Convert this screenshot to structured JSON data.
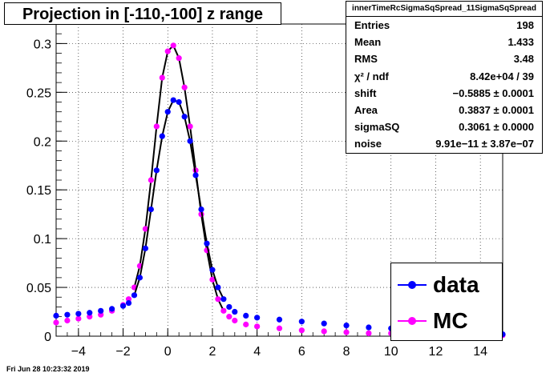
{
  "title": "Projection in [-110,-100] z range",
  "stats": {
    "name": "innerTimeRcSigmaSqSpread_11SigmaSqSpread",
    "rows": [
      {
        "label": "Entries",
        "value": "198"
      },
      {
        "label": "Mean",
        "value": "1.433"
      },
      {
        "label": "RMS",
        "value": "3.48"
      },
      {
        "label": "χ² / ndf",
        "value": "8.42e+04 / 39"
      },
      {
        "label": "shift",
        "value": "−0.5885 ± 0.0001"
      },
      {
        "label": "Area",
        "value": "0.3837 ± 0.0001"
      },
      {
        "label": "sigmaSQ",
        "value": "0.3061 ± 0.0000"
      },
      {
        "label": "noise",
        "value": "9.91e−11 ± 3.87e−07"
      }
    ]
  },
  "legend": [
    {
      "label": "data",
      "color": "#0000ff"
    },
    {
      "label": "MC",
      "color": "#ff00ff"
    }
  ],
  "footer": "Fri Jun 28 10:23:32 2019",
  "chart_data": {
    "type": "scatter",
    "xlim": [
      -5,
      15
    ],
    "ylim": [
      0,
      0.32
    ],
    "x_ticks": [
      "−4",
      "−2",
      "0",
      "2",
      "4",
      "6",
      "8",
      "10",
      "12",
      "14"
    ],
    "x_tick_values": [
      -4,
      -2,
      0,
      2,
      4,
      6,
      8,
      10,
      12,
      14
    ],
    "y_ticks": [
      "0",
      "0.05",
      "0.1",
      "0.15",
      "0.2",
      "0.25",
      "0.3"
    ],
    "y_tick_values": [
      0,
      0.05,
      0.1,
      0.15,
      0.2,
      0.25,
      0.3
    ],
    "grid": true,
    "series": [
      {
        "name": "data",
        "color": "#0000ff",
        "x": [
          -5.0,
          -4.5,
          -4.0,
          -3.5,
          -3.0,
          -2.5,
          -2.0,
          -1.75,
          -1.5,
          -1.25,
          -1.0,
          -0.75,
          -0.5,
          -0.25,
          0.0,
          0.25,
          0.5,
          0.75,
          1.0,
          1.25,
          1.5,
          1.75,
          2.0,
          2.25,
          2.5,
          2.75,
          3.0,
          3.5,
          4.0,
          5.0,
          6.0,
          7.0,
          8.0,
          9.0,
          10.0,
          11.0,
          12.0,
          13.0,
          14.0,
          15.0
        ],
        "y": [
          0.021,
          0.022,
          0.023,
          0.024,
          0.026,
          0.028,
          0.031,
          0.034,
          0.042,
          0.06,
          0.09,
          0.13,
          0.17,
          0.205,
          0.23,
          0.242,
          0.24,
          0.225,
          0.2,
          0.165,
          0.13,
          0.095,
          0.068,
          0.05,
          0.038,
          0.03,
          0.025,
          0.021,
          0.019,
          0.017,
          0.015,
          0.013,
          0.011,
          0.009,
          0.008,
          0.006,
          0.005,
          0.004,
          0.003,
          0.002
        ]
      },
      {
        "name": "MC",
        "color": "#ff00ff",
        "x": [
          -5.0,
          -4.5,
          -4.0,
          -3.5,
          -3.0,
          -2.5,
          -2.0,
          -1.75,
          -1.5,
          -1.25,
          -1.0,
          -0.75,
          -0.5,
          -0.25,
          0.0,
          0.25,
          0.5,
          0.75,
          1.0,
          1.25,
          1.5,
          1.75,
          2.0,
          2.25,
          2.5,
          2.75,
          3.0,
          3.5,
          4.0,
          5.0,
          6.0,
          7.0,
          8.0,
          9.0,
          10.0,
          11.0,
          12.0,
          13.0,
          14.0,
          15.0
        ],
        "y": [
          0.014,
          0.016,
          0.018,
          0.02,
          0.022,
          0.026,
          0.032,
          0.038,
          0.05,
          0.072,
          0.11,
          0.16,
          0.215,
          0.265,
          0.292,
          0.298,
          0.285,
          0.255,
          0.215,
          0.17,
          0.125,
          0.088,
          0.058,
          0.038,
          0.026,
          0.02,
          0.016,
          0.012,
          0.01,
          0.008,
          0.006,
          0.005,
          0.004,
          0.003,
          0.003,
          0.002,
          0.002,
          0.002,
          0.001,
          0.001
        ]
      }
    ]
  }
}
